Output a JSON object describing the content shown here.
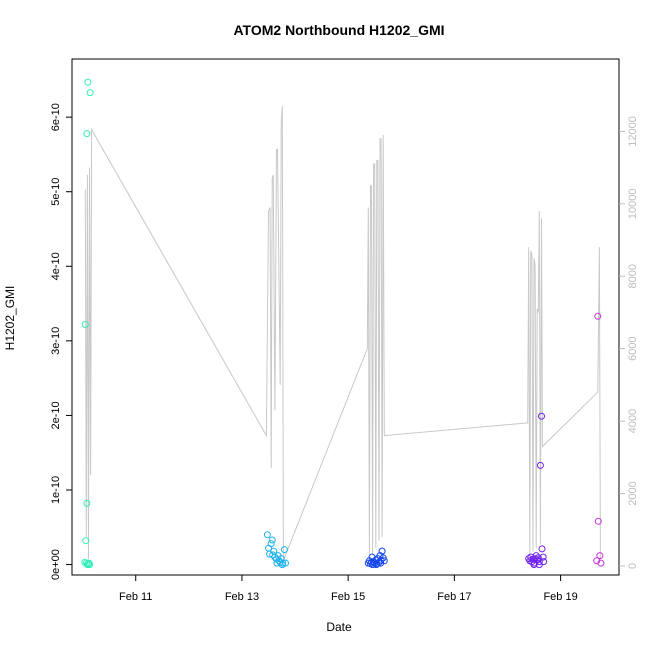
{
  "chart_data": {
    "type": "scatter",
    "title": "ATOM2 Northbound H1202_GMI",
    "xlabel": "Date",
    "ylabel": "H1202_GMI",
    "x_ticks": [
      "Feb 11",
      "Feb 13",
      "Feb 15",
      "Feb 17",
      "Feb 19"
    ],
    "x_tick_days": [
      11,
      13,
      15,
      17,
      19
    ],
    "xlim": [
      9.8,
      20.1
    ],
    "y_ticks": [
      "0e+00",
      "1e-10",
      "2e-10",
      "3e-10",
      "4e-10",
      "5e-10",
      "6e-10"
    ],
    "ylim": [
      -0.14,
      6.78
    ],
    "y_unit_exponent": -10,
    "y2_ticks": [
      "0",
      "2000",
      "4000",
      "6000",
      "8000",
      "10000",
      "12000"
    ],
    "y2lim": [
      -250,
      14000
    ],
    "grid": false,
    "legend": "none",
    "series": [
      {
        "color": "#33eebb",
        "points": [
          [
            10.05,
            3.22
          ],
          [
            10.08,
            5.78
          ],
          [
            10.1,
            6.47
          ],
          [
            10.14,
            6.33
          ],
          [
            10.08,
            0.82
          ],
          [
            10.06,
            0.32
          ],
          [
            10.04,
            0.03
          ],
          [
            10.07,
            0.02
          ],
          [
            10.11,
            0.01
          ],
          [
            10.13,
            0.0
          ],
          [
            10.09,
            0.0
          ],
          [
            10.12,
            0.02
          ]
        ]
      },
      {
        "color": "#1fb2ee",
        "points": [
          [
            13.48,
            0.4
          ],
          [
            13.5,
            0.22
          ],
          [
            13.52,
            0.14
          ],
          [
            13.55,
            0.28
          ],
          [
            13.57,
            0.33
          ],
          [
            13.6,
            0.18
          ],
          [
            13.62,
            0.1
          ],
          [
            13.65,
            0.07
          ],
          [
            13.68,
            0.12
          ],
          [
            13.7,
            0.05
          ],
          [
            13.72,
            0.03
          ],
          [
            13.74,
            0.08
          ],
          [
            13.77,
            0.02
          ],
          [
            13.8,
            0.2
          ],
          [
            13.82,
            0.02
          ],
          [
            13.58,
            0.13
          ],
          [
            13.66,
            0.02
          ],
          [
            13.76,
            0.0
          ]
        ]
      },
      {
        "color": "#1444ee",
        "points": [
          [
            15.38,
            0.02
          ],
          [
            15.4,
            0.05
          ],
          [
            15.42,
            0.01
          ],
          [
            15.44,
            0.03
          ],
          [
            15.46,
            0.0
          ],
          [
            15.48,
            0.04
          ],
          [
            15.5,
            0.02
          ],
          [
            15.52,
            0.06
          ],
          [
            15.54,
            0.01
          ],
          [
            15.56,
            0.08
          ],
          [
            15.58,
            0.03
          ],
          [
            15.6,
            0.12
          ],
          [
            15.62,
            0.06
          ],
          [
            15.64,
            0.18
          ],
          [
            15.66,
            0.09
          ],
          [
            15.68,
            0.05
          ],
          [
            15.45,
            0.1
          ],
          [
            15.53,
            0.0
          ],
          [
            15.61,
            0.02
          ]
        ]
      },
      {
        "color": "#7022ee",
        "points": [
          [
            18.4,
            0.08
          ],
          [
            18.42,
            0.05
          ],
          [
            18.44,
            0.1
          ],
          [
            18.46,
            0.04
          ],
          [
            18.48,
            0.07
          ],
          [
            18.5,
            0.02
          ],
          [
            18.52,
            0.08
          ],
          [
            18.54,
            0.12
          ],
          [
            18.56,
            0.06
          ],
          [
            18.58,
            0.09
          ],
          [
            18.6,
            0.04
          ],
          [
            18.62,
            1.33
          ],
          [
            18.64,
            1.99
          ],
          [
            18.65,
            0.21
          ],
          [
            18.67,
            0.1
          ],
          [
            18.68,
            0.04
          ],
          [
            18.5,
            0.0
          ],
          [
            18.6,
            0.0
          ]
        ]
      },
      {
        "color": "#cc33dd",
        "points": [
          [
            19.7,
            3.33
          ],
          [
            19.71,
            0.58
          ],
          [
            19.68,
            0.05
          ],
          [
            19.74,
            0.12
          ],
          [
            19.76,
            0.02
          ]
        ]
      }
    ],
    "secondary_line": {
      "color": "#c8c8c8",
      "axis": "right",
      "points": [
        [
          10.05,
          10400
        ],
        [
          10.07,
          800
        ],
        [
          10.09,
          10800
        ],
        [
          10.11,
          200
        ],
        [
          10.13,
          11000
        ],
        [
          10.15,
          2500
        ],
        [
          10.17,
          12050
        ],
        [
          13.46,
          3600
        ],
        [
          13.5,
          9800
        ],
        [
          13.53,
          9900
        ],
        [
          13.55,
          2700
        ],
        [
          13.57,
          10700
        ],
        [
          13.59,
          10800
        ],
        [
          13.62,
          4300
        ],
        [
          13.65,
          11500
        ],
        [
          13.67,
          11500
        ],
        [
          13.72,
          5000
        ],
        [
          13.74,
          12200
        ],
        [
          13.76,
          12700
        ],
        [
          13.78,
          200
        ],
        [
          13.82,
          300
        ],
        [
          15.36,
          6000
        ],
        [
          15.38,
          9900
        ],
        [
          15.4,
          300
        ],
        [
          15.42,
          10500
        ],
        [
          15.44,
          10500
        ],
        [
          15.46,
          300
        ],
        [
          15.48,
          11100
        ],
        [
          15.5,
          11100
        ],
        [
          15.52,
          500
        ],
        [
          15.54,
          11200
        ],
        [
          15.56,
          11200
        ],
        [
          15.58,
          700
        ],
        [
          15.6,
          11800
        ],
        [
          15.62,
          11800
        ],
        [
          15.64,
          800
        ],
        [
          15.66,
          11900
        ],
        [
          15.68,
          3600
        ],
        [
          18.38,
          3950
        ],
        [
          18.4,
          8800
        ],
        [
          18.42,
          300
        ],
        [
          18.44,
          8700
        ],
        [
          18.46,
          8600
        ],
        [
          18.48,
          400
        ],
        [
          18.5,
          8500
        ],
        [
          18.52,
          8300
        ],
        [
          18.54,
          500
        ],
        [
          18.56,
          7100
        ],
        [
          18.58,
          7000
        ],
        [
          18.6,
          9800
        ],
        [
          18.62,
          600
        ],
        [
          18.64,
          9600
        ],
        [
          18.66,
          3300
        ],
        [
          19.7,
          4800
        ],
        [
          19.73,
          8800
        ],
        [
          19.75,
          200
        ]
      ]
    }
  }
}
